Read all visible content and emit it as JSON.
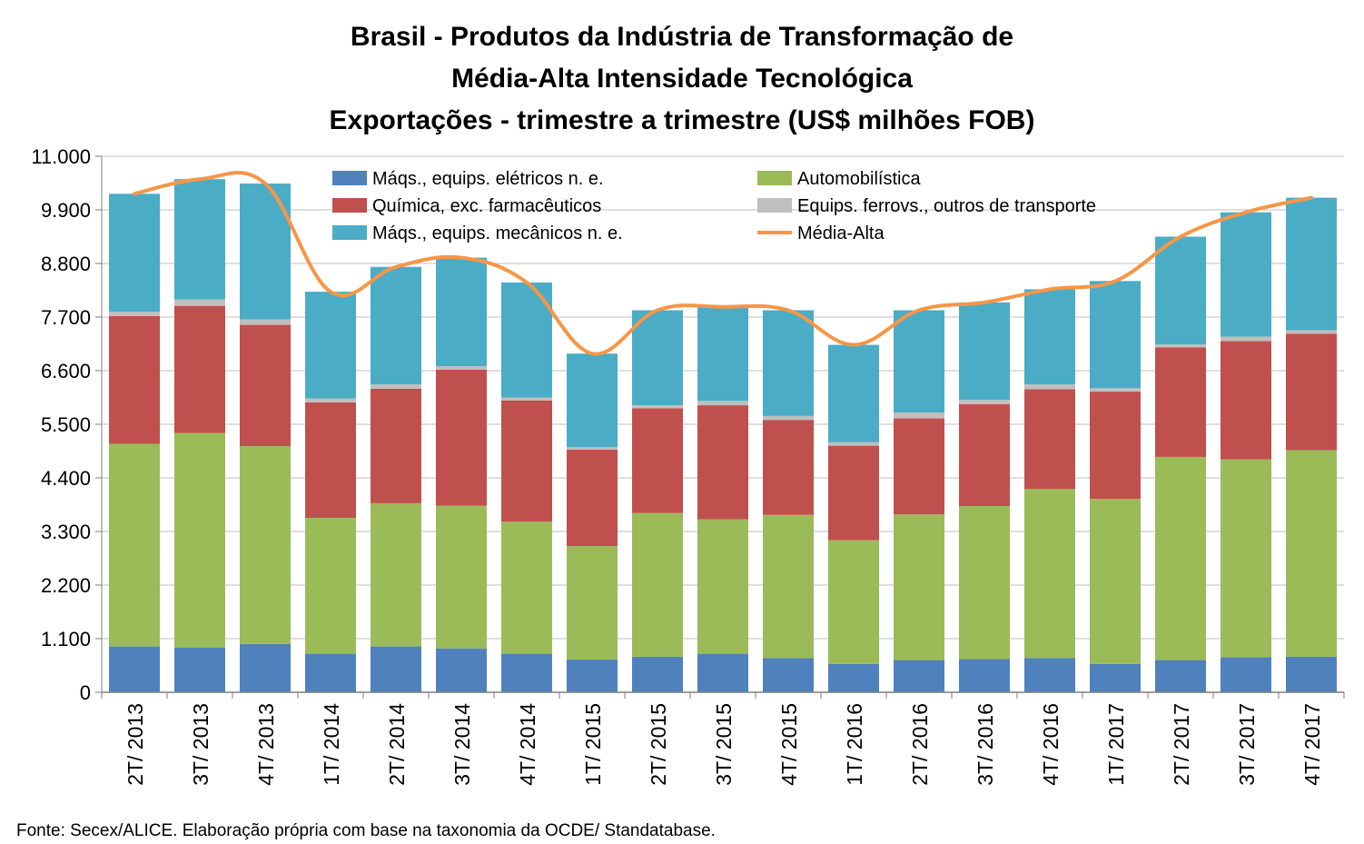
{
  "title_lines": [
    "Brasil - Produtos da Indústria de Transformação de",
    "Média-Alta Intensidade Tecnológica",
    "Exportações - trimestre a trimestre (US$ milhões FOB)"
  ],
  "source": "Fonte: Secex/ALICE. Elaboração própria com base na taxonomia da OCDE/ Standatabase.",
  "chart_data": {
    "type": "bar",
    "stacked": true,
    "categories": [
      "2T/ 2013",
      "3T/ 2013",
      "4T/ 2013",
      "1T/ 2014",
      "2T/ 2014",
      "3T/ 2014",
      "4T/ 2014",
      "1T/ 2015",
      "2T/ 2015",
      "3T/ 2015",
      "4T/ 2015",
      "1T/ 2016",
      "2T/ 2016",
      "3T/ 2016",
      "4T/ 2016",
      "1T/ 2017",
      "2T/ 2017",
      "3T/ 2017",
      "4T/ 2017"
    ],
    "yticks": [
      "0",
      "1.100",
      "2.200",
      "3.300",
      "4.400",
      "5.500",
      "6.600",
      "7.700",
      "8.800",
      "9.900",
      "11.000"
    ],
    "ylim": [
      0,
      11000
    ],
    "legend_position": "top",
    "series": [
      {
        "name": "Máqs., equips. elétricos n. e.",
        "color": "#4F81BD",
        "values": [
          940,
          920,
          990,
          790,
          940,
          900,
          790,
          670,
          730,
          790,
          700,
          580,
          660,
          680,
          700,
          580,
          660,
          720,
          730
        ]
      },
      {
        "name": "Automobilística",
        "color": "#9BBB59",
        "values": [
          4160,
          4400,
          4060,
          2790,
          2940,
          2930,
          2710,
          2330,
          2950,
          2760,
          2940,
          2540,
          2990,
          3140,
          3470,
          3390,
          4170,
          4060,
          4240
        ]
      },
      {
        "name": "Química, exc. farmacêuticos",
        "color": "#C0504D",
        "values": [
          2620,
          2610,
          2490,
          2370,
          2350,
          2790,
          2490,
          1980,
          2150,
          2340,
          1950,
          1940,
          1970,
          2090,
          2050,
          2200,
          2250,
          2430,
          2390
        ]
      },
      {
        "name": "Equips. ferrovs., outros de transporte",
        "color": "#BFBFBF",
        "values": [
          90,
          130,
          110,
          80,
          90,
          70,
          60,
          50,
          60,
          90,
          80,
          70,
          120,
          90,
          100,
          70,
          60,
          90,
          70
        ]
      },
      {
        "name": "Máqs., equips. mecânicos  n. e.",
        "color": "#4BACC6",
        "values": [
          2420,
          2470,
          2790,
          2190,
          2410,
          2230,
          2360,
          1920,
          1950,
          1930,
          2170,
          2000,
          2100,
          2000,
          1950,
          2200,
          2210,
          2550,
          2720
        ]
      }
    ],
    "line": {
      "name": "Média-Alta",
      "color": "#F79646",
      "values": [
        10230,
        10530,
        10440,
        8220,
        8730,
        8920,
        8410,
        6950,
        7840,
        7910,
        7840,
        7130,
        7840,
        8000,
        8270,
        8440,
        9350,
        9850,
        10150
      ]
    }
  }
}
